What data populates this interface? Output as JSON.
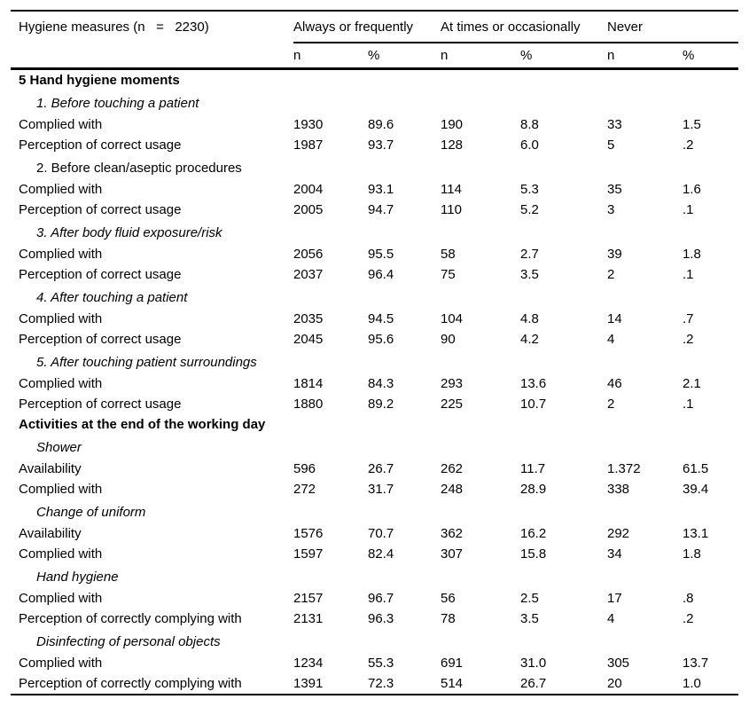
{
  "table": {
    "title": "Hygiene measures (n   =   2230)",
    "column_groups": [
      "Always or frequently",
      "At times or occasionally",
      "Never"
    ],
    "subheaders": [
      "n",
      "%",
      "n",
      "%",
      "n",
      "%"
    ],
    "rows": [
      {
        "type": "section",
        "label": "5 Hand hygiene moments"
      },
      {
        "type": "subsection",
        "label": "1. Before touching a patient",
        "italic": true
      },
      {
        "type": "data",
        "label": "Complied with",
        "values": [
          "1930",
          "89.6",
          "190",
          "8.8",
          "33",
          "1.5"
        ]
      },
      {
        "type": "data",
        "label": "Perception of correct usage",
        "values": [
          "1987",
          "93.7",
          "128",
          "6.0",
          "5",
          ".2"
        ]
      },
      {
        "type": "subsection",
        "label": "2. Before clean/aseptic procedures",
        "italic": false
      },
      {
        "type": "data",
        "label": "Complied with",
        "values": [
          "2004",
          "93.1",
          "114",
          "5.3",
          "35",
          "1.6"
        ]
      },
      {
        "type": "data",
        "label": "Perception of correct usage",
        "values": [
          "2005",
          "94.7",
          "110",
          "5.2",
          "3",
          ".1"
        ]
      },
      {
        "type": "subsection",
        "label": "3. After body fluid exposure/risk",
        "italic": true
      },
      {
        "type": "data",
        "label": "Complied with",
        "values": [
          "2056",
          "95.5",
          "58",
          "2.7",
          "39",
          "1.8"
        ]
      },
      {
        "type": "data",
        "label": "Perception of correct usage",
        "values": [
          "2037",
          "96.4",
          "75",
          "3.5",
          "2",
          ".1"
        ]
      },
      {
        "type": "subsection",
        "label": "4. After touching a patient",
        "italic": true
      },
      {
        "type": "data",
        "label": "Complied with",
        "values": [
          "2035",
          "94.5",
          "104",
          "4.8",
          "14",
          ".7"
        ]
      },
      {
        "type": "data",
        "label": "Perception of correct usage",
        "values": [
          "2045",
          "95.6",
          "90",
          "4.2",
          "4",
          ".2"
        ]
      },
      {
        "type": "subsection",
        "label": "5. After touching patient surroundings",
        "italic": true
      },
      {
        "type": "data",
        "label": "Complied with",
        "values": [
          "1814",
          "84.3",
          "293",
          "13.6",
          "46",
          "2.1"
        ]
      },
      {
        "type": "data",
        "label": "Perception of correct usage",
        "values": [
          "1880",
          "89.2",
          "225",
          "10.7",
          "2",
          ".1"
        ]
      },
      {
        "type": "section",
        "label": "Activities at the end of the working day"
      },
      {
        "type": "subsection",
        "label": "Shower",
        "italic": true
      },
      {
        "type": "data",
        "label": "Availability",
        "values": [
          "596",
          "26.7",
          "262",
          "11.7",
          "1.372",
          "61.5"
        ]
      },
      {
        "type": "data",
        "label": "Complied with",
        "values": [
          "272",
          "31.7",
          "248",
          "28.9",
          "338",
          "39.4"
        ]
      },
      {
        "type": "subsection",
        "label": "Change of uniform",
        "italic": true
      },
      {
        "type": "data",
        "label": "Availability",
        "values": [
          "1576",
          "70.7",
          "362",
          "16.2",
          "292",
          "13.1"
        ]
      },
      {
        "type": "data",
        "label": "Complied with",
        "values": [
          "1597",
          "82.4",
          "307",
          "15.8",
          "34",
          "1.8"
        ]
      },
      {
        "type": "subsection",
        "label": "Hand hygiene",
        "italic": true
      },
      {
        "type": "data",
        "label": "Complied with",
        "values": [
          "2157",
          "96.7",
          "56",
          "2.5",
          "17",
          ".8"
        ]
      },
      {
        "type": "data",
        "label": "Perception of correctly complying with",
        "values": [
          "2131",
          "96.3",
          "78",
          "3.5",
          "4",
          ".2"
        ]
      },
      {
        "type": "subsection",
        "label": "Disinfecting of personal objects",
        "italic": true
      },
      {
        "type": "data",
        "label": "Complied with",
        "values": [
          "1234",
          "55.3",
          "691",
          "31.0",
          "305",
          "13.7"
        ]
      },
      {
        "type": "data",
        "label": "Perception of correctly complying with",
        "values": [
          "1391",
          "72.3",
          "514",
          "26.7",
          "20",
          "1.0"
        ]
      }
    ]
  }
}
